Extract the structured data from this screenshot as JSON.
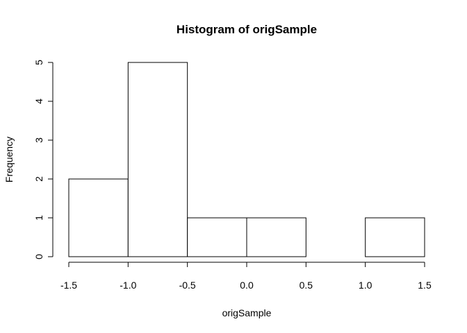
{
  "chart_data": {
    "type": "bar",
    "title": "Histogram of origSample",
    "xlabel": "origSample",
    "ylabel": "Frequency",
    "bins": [
      {
        "x0": -1.5,
        "x1": -1.0,
        "count": 2
      },
      {
        "x0": -1.0,
        "x1": -0.5,
        "count": 5
      },
      {
        "x0": -0.5,
        "x1": 0.0,
        "count": 1
      },
      {
        "x0": 0.0,
        "x1": 0.5,
        "count": 1
      },
      {
        "x0": 0.5,
        "x1": 1.0,
        "count": 0
      },
      {
        "x0": 1.0,
        "x1": 1.5,
        "count": 1
      }
    ],
    "xlim": [
      -1.5,
      1.5
    ],
    "ylim": [
      0,
      5
    ],
    "x_ticks": [
      -1.5,
      -1.0,
      -0.5,
      0.0,
      0.5,
      1.0,
      1.5
    ],
    "x_tick_labels": [
      "-1.5",
      "-1.0",
      "-0.5",
      "0.0",
      "0.5",
      "1.0",
      "1.5"
    ],
    "y_ticks": [
      0,
      1,
      2,
      3,
      4,
      5
    ],
    "y_tick_labels": [
      "0",
      "1",
      "2",
      "3",
      "4",
      "5"
    ],
    "grid": false,
    "legend": "none",
    "colors": {
      "bar_fill": "#ffffff",
      "bar_stroke": "#000000"
    }
  }
}
